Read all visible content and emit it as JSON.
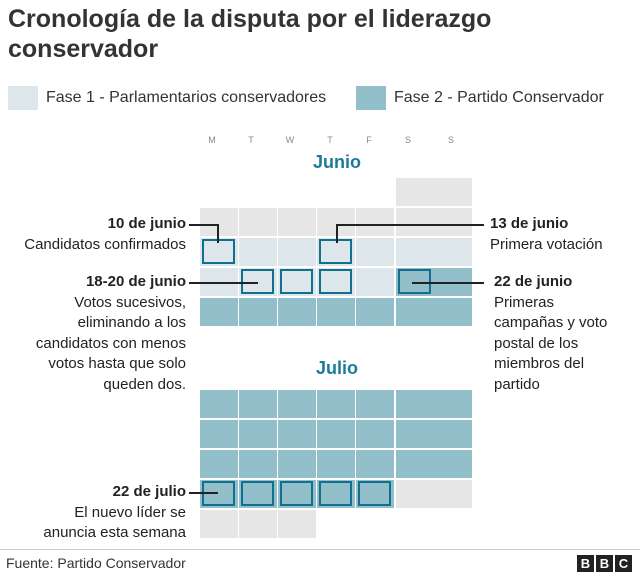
{
  "title": "Cronología de la disputa por el liderazgo conservador",
  "legend": [
    {
      "label": "Fase 1 - Parlamentarios conservadores",
      "color": "#dde6ea"
    },
    {
      "label": "Fase 2 - Partido Conservador",
      "color": "#93bfca"
    }
  ],
  "colors": {
    "empty": "#e6e6e6",
    "highlight_border": "#11708f",
    "month_title": "#1c7a9b"
  },
  "weekdays": [
    "M",
    "T",
    "W",
    "T",
    "F",
    "S",
    "S"
  ],
  "months": [
    {
      "name": "Junio",
      "weeks": [
        [
          "none",
          "none",
          "none",
          "none",
          "none",
          "empty",
          "empty"
        ],
        [
          "empty",
          "empty",
          "empty",
          "empty",
          "empty",
          "empty",
          "empty"
        ],
        [
          "p1",
          "p1",
          "p1",
          "p1",
          "p1",
          "p1",
          "p1"
        ],
        [
          "p1",
          "p1",
          "p1",
          "p1",
          "p1",
          "p2",
          "p2"
        ],
        [
          "p2",
          "p2",
          "p2",
          "p2",
          "p2",
          "p2",
          "p2"
        ]
      ],
      "highlights": [
        [
          2,
          0
        ],
        [
          2,
          3
        ],
        [
          3,
          1
        ],
        [
          3,
          2
        ],
        [
          3,
          3
        ],
        [
          3,
          5
        ]
      ]
    },
    {
      "name": "Julio",
      "weeks": [
        [
          "p2",
          "p2",
          "p2",
          "p2",
          "p2",
          "p2",
          "p2"
        ],
        [
          "p2",
          "p2",
          "p2",
          "p2",
          "p2",
          "p2",
          "p2"
        ],
        [
          "p2",
          "p2",
          "p2",
          "p2",
          "p2",
          "p2",
          "p2"
        ],
        [
          "p2",
          "p2",
          "p2",
          "p2",
          "p2",
          "empty",
          "empty"
        ],
        [
          "empty",
          "empty",
          "empty",
          "none",
          "none",
          "none",
          "none"
        ]
      ],
      "highlights": [
        [
          3,
          0
        ],
        [
          3,
          1
        ],
        [
          3,
          2
        ],
        [
          3,
          3
        ],
        [
          3,
          4
        ]
      ]
    }
  ],
  "annotations": {
    "jun10": {
      "head": "10 de junio",
      "lines": [
        "Candidatos confirmados"
      ]
    },
    "jun13": {
      "head": "13 de junio",
      "lines": [
        "Primera votación"
      ]
    },
    "jun18": {
      "head": "18-20 de junio",
      "lines": [
        "Votos sucesivos,",
        "eliminando a los",
        "candidatos con menos",
        "votos hasta que solo",
        "queden dos."
      ]
    },
    "jun22": {
      "head": "22 de junio",
      "lines": [
        "Primeras",
        "campañas y voto",
        "postal de los",
        "miembros del",
        "partido"
      ]
    },
    "jul22": {
      "head": "22 de julio",
      "lines": [
        "El nuevo líder se",
        "anuncia esta semana"
      ]
    }
  },
  "source": "Fuente: Partido Conservador",
  "brand": [
    "B",
    "B",
    "C"
  ]
}
